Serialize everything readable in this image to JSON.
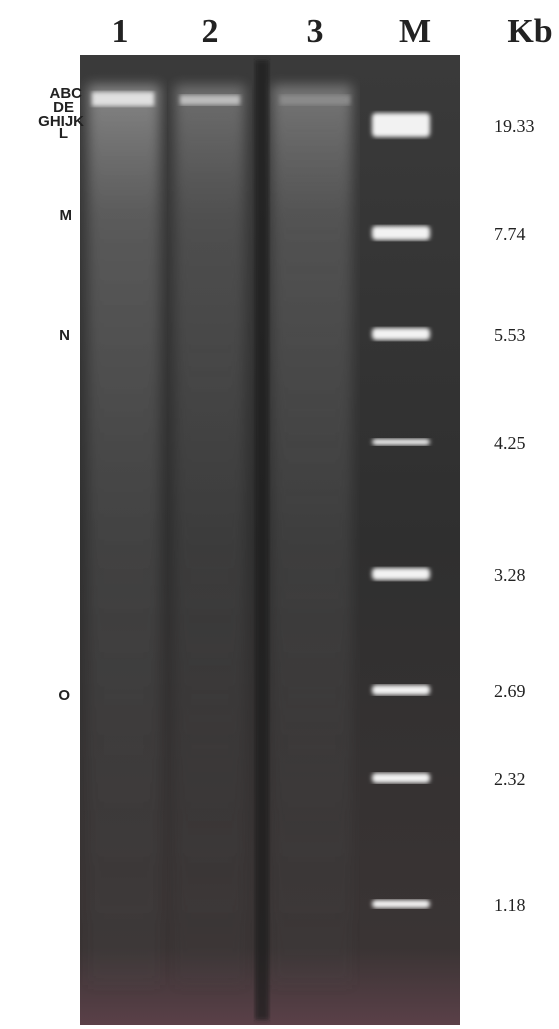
{
  "gel": {
    "lanes": [
      "1",
      "2",
      "3",
      "M"
    ],
    "unit": "Kb",
    "marker_sizes": [
      "19.33",
      "7.74",
      "5.53",
      "4.25",
      "3.28",
      "2.69",
      "2.32",
      "1.18"
    ],
    "band_labels": [
      "ABC",
      "DE",
      "GHIJK",
      "L",
      "M",
      "N",
      "O"
    ]
  }
}
